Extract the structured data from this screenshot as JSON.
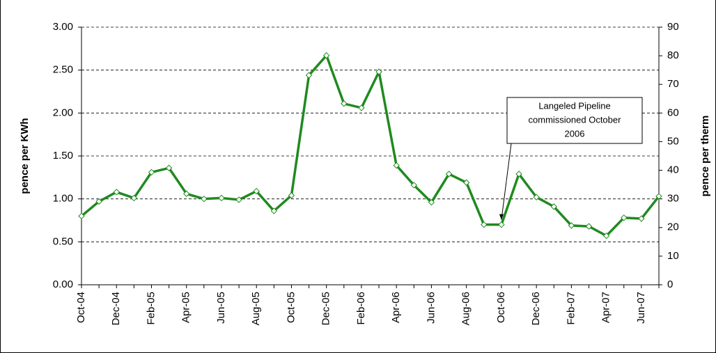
{
  "chart_data": {
    "type": "line",
    "y_label": "pence per KWh",
    "y2_label": "pence per therm",
    "categories": [
      "Oct-04",
      null,
      "Dec-04",
      null,
      "Feb-05",
      null,
      "Apr-05",
      null,
      "Jun-05",
      null,
      "Aug-05",
      null,
      "Oct-05",
      null,
      "Dec-05",
      null,
      "Feb-06",
      null,
      "Apr-06",
      null,
      "Jun-06",
      null,
      "Aug-06",
      null,
      "Oct-06",
      null,
      "Dec-06",
      null,
      "Feb-07",
      null,
      "Apr-07",
      null,
      "Jun-07",
      null
    ],
    "values": [
      0.8,
      0.97,
      1.08,
      1.01,
      1.31,
      1.36,
      1.06,
      1.0,
      1.01,
      0.99,
      1.09,
      0.86,
      1.04,
      2.44,
      2.67,
      2.11,
      2.06,
      2.48,
      1.39,
      1.16,
      0.96,
      1.29,
      1.19,
      0.7,
      0.7,
      1.29,
      1.02,
      0.91,
      0.69,
      0.68,
      0.57,
      0.78,
      0.77,
      1.03
    ],
    "color": "#1f8a1f",
    "ylim": [
      0,
      3
    ],
    "yticks": [
      {
        "value": 0,
        "label": "0.00"
      },
      {
        "value": 0.5,
        "label": "0.50"
      },
      {
        "value": 1,
        "label": "1.00"
      },
      {
        "value": 1.5,
        "label": "1.50"
      },
      {
        "value": 2,
        "label": "2.00"
      },
      {
        "value": 2.5,
        "label": "2.50"
      },
      {
        "value": 3,
        "label": "3.00"
      }
    ],
    "y2lim": [
      0,
      90
    ],
    "y2ticks": [
      0,
      10,
      20,
      30,
      40,
      50,
      60,
      70,
      80,
      90
    ],
    "grid": true,
    "annotation": {
      "lines": [
        "Langeled Pipeline",
        "commissioned October",
        "2006"
      ],
      "index": 24
    }
  }
}
